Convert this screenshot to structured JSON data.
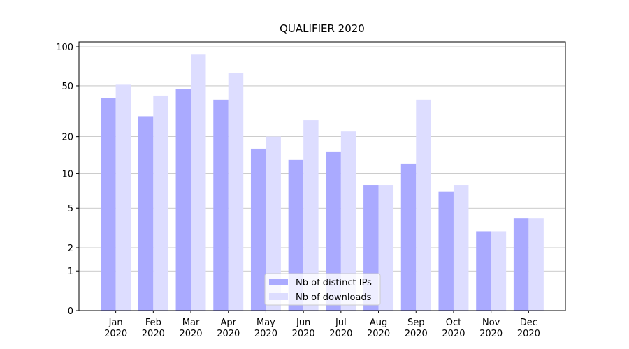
{
  "chart_data": {
    "type": "bar",
    "title": "QUALIFIER 2020",
    "categories": [
      "Jan 2020",
      "Feb 2020",
      "Mar 2020",
      "Apr 2020",
      "May 2020",
      "Jun 2020",
      "Jul 2020",
      "Aug 2020",
      "Sep 2020",
      "Oct 2020",
      "Nov 2020",
      "Dec 2020"
    ],
    "series": [
      {
        "name": "Nb of distinct IPs",
        "color": "#aaaaff",
        "values": [
          40,
          29,
          47,
          39,
          16,
          13,
          15,
          8,
          12,
          7,
          3,
          4
        ]
      },
      {
        "name": "Nb of downloads",
        "color": "#ddddff",
        "values": [
          51,
          42,
          87,
          63,
          20,
          27,
          22,
          8,
          39,
          8,
          3,
          4
        ]
      }
    ],
    "yscale": "log1p",
    "ylim": [
      0,
      109
    ],
    "yticks": [
      0,
      1,
      2,
      5,
      10,
      20,
      50,
      100
    ],
    "grid": true,
    "legend": "lower center"
  }
}
